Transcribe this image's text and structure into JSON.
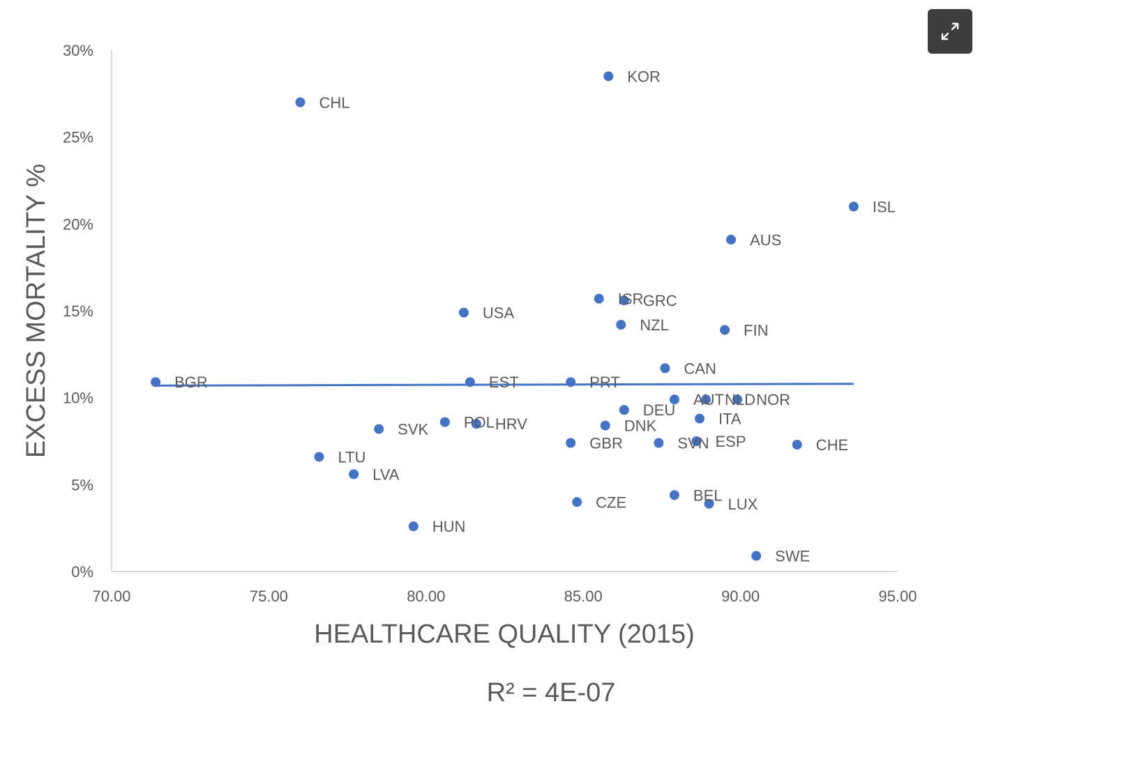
{
  "toolbar": {
    "expand_icon": "expand-icon"
  },
  "chart_data": {
    "type": "scatter",
    "xlabel": "HEALTHCARE  QUALITY (2015)",
    "ylabel": "EXCESS MORTALITY %",
    "annotation": "R² = 4E-07",
    "xlim": [
      70,
      95
    ],
    "ylim": [
      0,
      30
    ],
    "x_ticks": [
      "70.00",
      "75.00",
      "80.00",
      "85.00",
      "90.00",
      "95.00"
    ],
    "y_ticks": [
      "0%",
      "5%",
      "10%",
      "15%",
      "20%",
      "25%",
      "30%"
    ],
    "grid": false,
    "legend": "none",
    "point_color": "#4472c4",
    "trendline": {
      "x": [
        71.4,
        93.6
      ],
      "y": [
        10.7,
        10.8
      ]
    },
    "points": [
      {
        "label": "KOR",
        "x": 85.8,
        "y": 28.5
      },
      {
        "label": "CHL",
        "x": 76.0,
        "y": 27.0
      },
      {
        "label": "ISL",
        "x": 93.6,
        "y": 21.0
      },
      {
        "label": "AUS",
        "x": 89.7,
        "y": 19.1
      },
      {
        "label": "ISR",
        "x": 85.5,
        "y": 15.7
      },
      {
        "label": "GRC",
        "x": 86.3,
        "y": 15.6
      },
      {
        "label": "USA",
        "x": 81.2,
        "y": 14.9
      },
      {
        "label": "NZL",
        "x": 86.2,
        "y": 14.2
      },
      {
        "label": "FIN",
        "x": 89.5,
        "y": 13.9
      },
      {
        "label": "CAN",
        "x": 87.6,
        "y": 11.7
      },
      {
        "label": "BGR",
        "x": 71.4,
        "y": 10.9
      },
      {
        "label": "EST",
        "x": 81.4,
        "y": 10.9
      },
      {
        "label": "PRT",
        "x": 84.6,
        "y": 10.9
      },
      {
        "label": "AUT",
        "x": 87.9,
        "y": 9.9
      },
      {
        "label": "NLD",
        "x": 88.9,
        "y": 9.9
      },
      {
        "label": "NOR",
        "x": 89.9,
        "y": 9.9
      },
      {
        "label": "DEU",
        "x": 86.3,
        "y": 9.3
      },
      {
        "label": "ITA",
        "x": 88.7,
        "y": 8.8
      },
      {
        "label": "POL",
        "x": 80.6,
        "y": 8.6
      },
      {
        "label": "HRV",
        "x": 81.6,
        "y": 8.5
      },
      {
        "label": "DNK",
        "x": 85.7,
        "y": 8.4
      },
      {
        "label": "SVK",
        "x": 78.5,
        "y": 8.2
      },
      {
        "label": "GBR",
        "x": 84.6,
        "y": 7.4
      },
      {
        "label": "SVN",
        "x": 87.4,
        "y": 7.4
      },
      {
        "label": "ESP",
        "x": 88.6,
        "y": 7.5
      },
      {
        "label": "CHE",
        "x": 91.8,
        "y": 7.3
      },
      {
        "label": "LTU",
        "x": 76.6,
        "y": 6.6
      },
      {
        "label": "LVA",
        "x": 77.7,
        "y": 5.6
      },
      {
        "label": "BEL",
        "x": 87.9,
        "y": 4.4
      },
      {
        "label": "LUX",
        "x": 89.0,
        "y": 3.9
      },
      {
        "label": "CZE",
        "x": 84.8,
        "y": 4.0
      },
      {
        "label": "HUN",
        "x": 79.6,
        "y": 2.6
      },
      {
        "label": "SWE",
        "x": 90.5,
        "y": 0.9
      }
    ]
  }
}
